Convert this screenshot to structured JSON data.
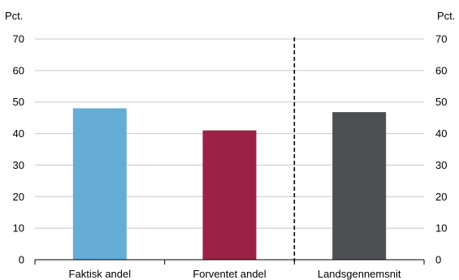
{
  "chart_data": {
    "type": "bar",
    "categories": [
      "Faktisk andel",
      "Forventet andel",
      "Landsgennemsnit"
    ],
    "values": [
      48,
      41,
      46.8
    ],
    "colors": [
      "#65acd6",
      "#9b2246",
      "#4e4f53"
    ],
    "ylim": [
      0,
      70
    ],
    "yticks": [
      0,
      10,
      20,
      30,
      40,
      50,
      60,
      70
    ],
    "ytick_labels": [
      "0",
      "10",
      "20",
      "30",
      "40",
      "50",
      "60",
      "70"
    ],
    "y_unit_left": "Pct.",
    "y_unit_right": "Pct.",
    "grid": true,
    "grid_color": "#c8c8c8",
    "separator": {
      "style": "dashed",
      "between": [
        "Forventet andel",
        "Landsgennemsnit"
      ]
    }
  }
}
